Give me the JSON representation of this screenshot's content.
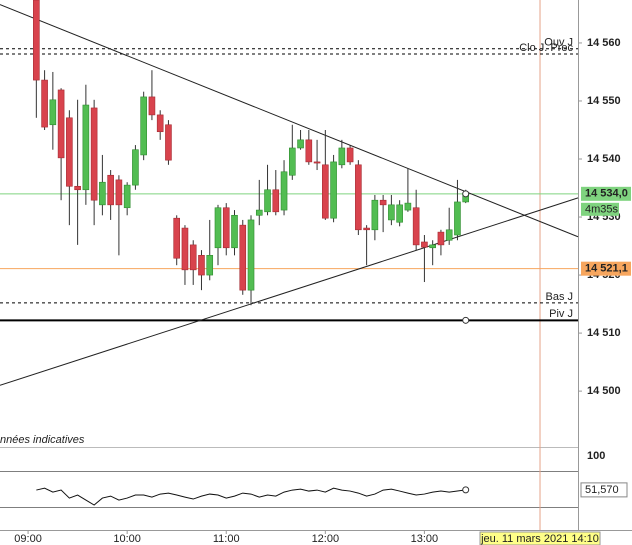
{
  "chart_data": {
    "type": "candlestick",
    "up_color": "#52bd52",
    "down_color": "#d8434d",
    "xlim": [
      -17,
      333
    ],
    "ylim": [
      14493.3,
      14567.4
    ],
    "xticks": [
      {
        "value": 0,
        "label": "09:00"
      },
      {
        "value": 60,
        "label": "10:00"
      },
      {
        "value": 120,
        "label": "11:00"
      },
      {
        "value": 180,
        "label": "12:00"
      },
      {
        "value": 240,
        "label": "13:00"
      }
    ],
    "yticks": [
      {
        "value": 14560,
        "label": "14 560"
      },
      {
        "value": 14550,
        "label": "14 550"
      },
      {
        "value": 14540,
        "label": "14 540"
      },
      {
        "value": 14530,
        "label": "14 530"
      },
      {
        "value": 14520,
        "label": "14 520"
      },
      {
        "value": 14510,
        "label": "14 510"
      },
      {
        "value": 14500,
        "label": "14 500"
      }
    ],
    "candles": {
      "x": [
        5,
        10,
        15,
        20,
        25,
        30,
        35,
        40,
        45,
        50,
        55,
        60,
        65,
        70,
        75,
        80,
        85,
        90,
        95,
        100,
        105,
        110,
        115,
        120,
        125,
        130,
        135,
        140,
        145,
        150,
        155,
        160,
        165,
        170,
        175,
        180,
        185,
        190,
        195,
        200,
        205,
        210,
        215,
        220,
        225,
        230,
        235,
        240,
        245,
        250,
        255,
        260,
        265
      ],
      "open": [
        14567.4,
        14553.6,
        14545.9,
        14551.9,
        14547.1,
        14535.3,
        14534.7,
        14548.8,
        14532.1,
        14537.2,
        14536.4,
        14531.6,
        14535.5,
        14540.7,
        14550.7,
        14547.6,
        14545.9,
        14529.8,
        14528.1,
        14525.2,
        14523.4,
        14520.0,
        14524.7,
        14531.6,
        14524.7,
        14528.6,
        14517.4,
        14530.3,
        14530.9,
        14534.7,
        14531.2,
        14537.2,
        14541.9,
        14543.3,
        14539.5,
        14539.0,
        14529.8,
        14539.0,
        14541.9,
        14539.0,
        14528.1,
        14527.8,
        14532.9,
        14529.5,
        14529.1,
        14531.2,
        14531.6,
        14525.7,
        14524.7,
        14527.4,
        14526.0,
        14526.9,
        14532.6
      ],
      "high": [
        14567.4,
        14555.3,
        14555.0,
        14552.2,
        14548.4,
        14550.2,
        14552.8,
        14550.2,
        14540.7,
        14538.1,
        14537.2,
        14536.0,
        14542.4,
        14551.6,
        14555.3,
        14548.4,
        14546.7,
        14530.3,
        14528.6,
        14526.0,
        14524.3,
        14529.5,
        14532.1,
        14532.4,
        14531.2,
        14529.5,
        14530.3,
        14536.4,
        14539.0,
        14538.1,
        14539.8,
        14545.9,
        14545.0,
        14545.0,
        14543.3,
        14545.0,
        14540.7,
        14543.3,
        14542.4,
        14539.8,
        14528.6,
        14533.8,
        14533.8,
        14533.8,
        14532.9,
        14538.4,
        14534.7,
        14526.9,
        14526.0,
        14527.8,
        14531.6,
        14536.4,
        14534.7
      ],
      "low": [
        14547.1,
        14545.0,
        14541.6,
        14532.9,
        14528.6,
        14525.2,
        14532.1,
        14528.6,
        14530.3,
        14529.5,
        14523.4,
        14530.3,
        14534.7,
        14539.8,
        14546.7,
        14543.3,
        14539.0,
        14521.7,
        14518.3,
        14518.3,
        14517.4,
        14519.1,
        14521.7,
        14523.4,
        14523.4,
        14516.6,
        14514.8,
        14528.6,
        14530.3,
        14530.3,
        14530.3,
        14536.4,
        14541.6,
        14539.0,
        14538.1,
        14529.5,
        14529.1,
        14538.4,
        14539.0,
        14526.9,
        14521.7,
        14526.0,
        14527.4,
        14528.6,
        14528.4,
        14530.9,
        14524.3,
        14518.8,
        14521.7,
        14523.4,
        14525.2,
        14526.0,
        14532.4
      ],
      "close": [
        14553.6,
        14545.5,
        14550.2,
        14540.2,
        14535.3,
        14534.7,
        14549.3,
        14532.9,
        14536.0,
        14532.1,
        14532.1,
        14535.5,
        14541.6,
        14550.7,
        14547.6,
        14544.7,
        14539.8,
        14522.9,
        14520.9,
        14520.9,
        14520.0,
        14523.4,
        14531.6,
        14524.7,
        14530.3,
        14517.4,
        14529.5,
        14531.2,
        14534.7,
        14530.9,
        14537.8,
        14541.9,
        14543.3,
        14539.5,
        14539.3,
        14529.8,
        14539.5,
        14541.9,
        14539.5,
        14527.8,
        14527.8,
        14532.9,
        14532.1,
        14532.1,
        14532.1,
        14532.4,
        14525.2,
        14524.8,
        14525.2,
        14525.2,
        14527.8,
        14532.6,
        14534.0
      ]
    },
    "trendlines": [
      {
        "x": [
          -17,
          333
        ],
        "y": [
          14566.6,
          14526.6
        ]
      },
      {
        "x": [
          -17,
          333
        ],
        "y": [
          14501.0,
          14533.3
        ]
      }
    ],
    "levels": [
      {
        "label": "Ouv J",
        "value": 14559.0,
        "style": "dashed"
      },
      {
        "label": "Clo J. Prec",
        "value": 14558.1,
        "style": "dashed"
      },
      {
        "label": "Bas J",
        "value": 14515.2,
        "style": "dashed"
      },
      {
        "label": "Piv J",
        "value": 14512.2,
        "style": "solid"
      }
    ],
    "price_markers": [
      {
        "value": 14534.0,
        "label": "14 534,0",
        "color": "#7fd37f"
      },
      {
        "value": 14521.1,
        "label": "14 521,1",
        "color": "#f7a65e"
      }
    ],
    "countdown": "4m35s",
    "cursor": {
      "x": 310,
      "label": "jeu. 11 mars 2021 14:10"
    },
    "indicator": {
      "title": "nnées indicatives",
      "ylim": [
        -5.7,
        112.8
      ],
      "yticks": [
        100
      ],
      "values": [
        51.3,
        54.1,
        48.4,
        51.3,
        39.9,
        44.2,
        37.0,
        29.9,
        39.9,
        42.7,
        37.0,
        39.9,
        44.2,
        44.2,
        41.3,
        45.6,
        47.0,
        44.2,
        41.3,
        38.5,
        42.7,
        45.6,
        44.2,
        39.9,
        42.7,
        47.0,
        45.6,
        41.3,
        44.2,
        42.7,
        48.4,
        51.3,
        52.7,
        49.9,
        51.3,
        48.4,
        54.1,
        51.3,
        49.9,
        47.0,
        42.7,
        45.6,
        51.3,
        52.7,
        49.9,
        47.0,
        44.2,
        45.6,
        48.4,
        49.9,
        48.4,
        49.9,
        51.57
      ],
      "last_label": "51,570"
    }
  }
}
